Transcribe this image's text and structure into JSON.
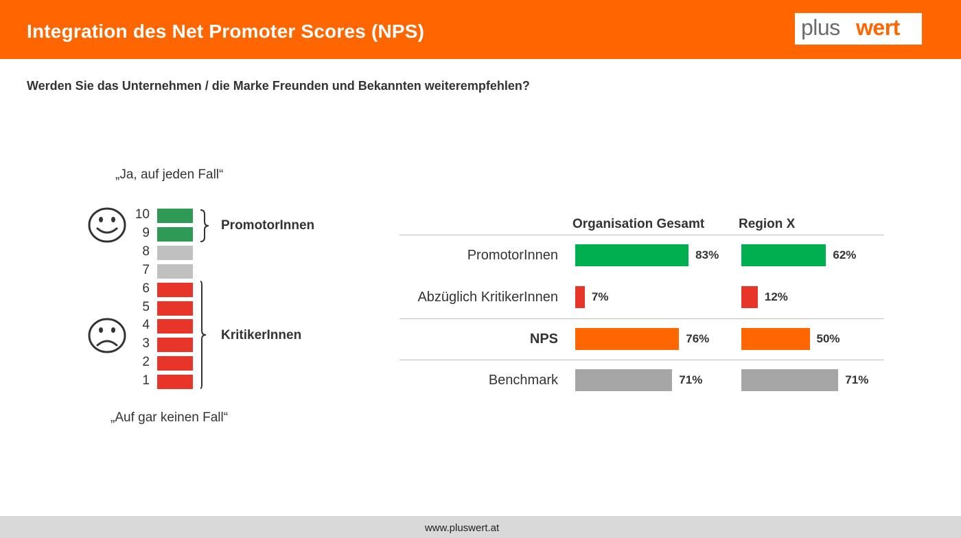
{
  "header": {
    "title": "Integration des Net Promoter Scores (NPS)",
    "logo_part1": "plus",
    "logo_part2": "wert"
  },
  "question": "Werden Sie das Unternehmen / die Marke Freunden und Bekannten weiterempfehlen?",
  "scale": {
    "top_quote": "„Ja, auf jeden Fall“",
    "bottom_quote": "„Auf gar keinen Fall“",
    "levels": [
      "10",
      "9",
      "8",
      "7",
      "6",
      "5",
      "4",
      "3",
      "2",
      "1"
    ],
    "promoter_label": "PromotorInnen",
    "critic_label": "KritikerInnen",
    "colors": {
      "promoter": "#2e9a55",
      "neutral": "#c0c0c0",
      "critic": "#e8352a"
    }
  },
  "chart_data": {
    "type": "bar",
    "orientation": "horizontal",
    "categories": [
      "PromotorInnen",
      "Abzüglich KritikerInnen",
      "NPS",
      "Benchmark"
    ],
    "series": [
      {
        "name": "Organisation Gesamt",
        "values": [
          83,
          7,
          76,
          71
        ],
        "labels": [
          "83%",
          "7%",
          "76%",
          "71%"
        ]
      },
      {
        "name": "Region X",
        "values": [
          62,
          12,
          50,
          71
        ],
        "labels": [
          "62%",
          "12%",
          "50%",
          "71%"
        ]
      }
    ],
    "category_colors": [
      "#00b050",
      "#e8352a",
      "#ff6600",
      "#a6a6a6"
    ],
    "unit": "%",
    "bold_category": "NPS"
  },
  "footer": {
    "url": "www.pluswert.at"
  }
}
